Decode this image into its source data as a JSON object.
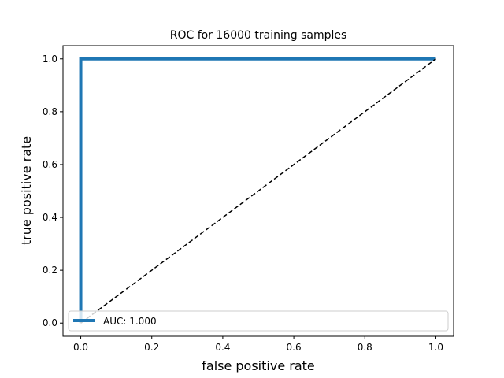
{
  "chart_data": {
    "type": "line",
    "title": "ROC for 16000 training samples",
    "xlabel": "false positive rate",
    "ylabel": "true positive rate",
    "xlim": [
      -0.05,
      1.05
    ],
    "ylim": [
      -0.05,
      1.05
    ],
    "x_ticks": [
      "0.0",
      "0.2",
      "0.4",
      "0.6",
      "0.8",
      "1.0"
    ],
    "y_ticks": [
      "0.0",
      "0.2",
      "0.4",
      "0.6",
      "0.8",
      "1.0"
    ],
    "grid": false,
    "legend_position": "lower-right",
    "series": [
      {
        "name": "AUC: 1.000",
        "color": "#1f77b4",
        "style": "solid",
        "points": [
          [
            0.0,
            0.0
          ],
          [
            0.0,
            1.0
          ],
          [
            1.0,
            1.0
          ]
        ]
      },
      {
        "color": "#000000",
        "style": "dashed",
        "points": [
          [
            0.0,
            0.0
          ],
          [
            1.0,
            1.0
          ]
        ]
      }
    ]
  }
}
